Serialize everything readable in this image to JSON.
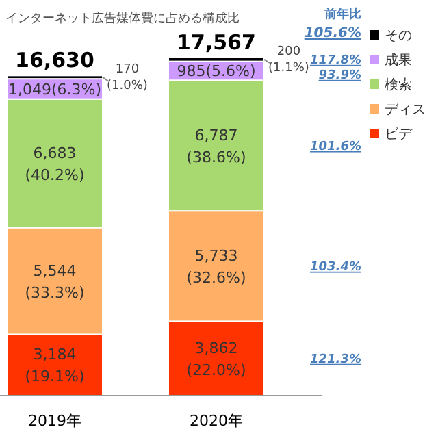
{
  "chart_data": {
    "type": "bar",
    "stacked": true,
    "title": "インターネット広告媒体費に占める構成比",
    "categories": [
      "2019年",
      "2020年"
    ],
    "series": [
      {
        "name": "ビデ",
        "color": "#ff3300",
        "values": [
          3184,
          3862
        ],
        "value_labels": [
          "3,184\n(19.1%)",
          "3,862\n(22.0%)"
        ]
      },
      {
        "name": "ディス",
        "color": "#ffb066",
        "values": [
          5544,
          5733
        ],
        "value_labels": [
          "5,544\n(33.3%)",
          "5,733\n(32.6%)"
        ]
      },
      {
        "name": "検索",
        "color": "#a8d870",
        "values": [
          6683,
          6787
        ],
        "value_labels": [
          "6,683\n(40.2%)",
          "6,787\n(38.6%)"
        ]
      },
      {
        "name": "成果",
        "color": "#cc99ff",
        "values": [
          1049,
          985
        ],
        "value_labels": [
          "1,049(6.3%)",
          "985(5.6%)"
        ]
      },
      {
        "name": "その",
        "color": "#000000",
        "values": [
          170,
          200
        ],
        "value_labels": [
          "170\n(1.0%)",
          "200\n(1.1%)"
        ]
      }
    ],
    "totals": [
      "16,630",
      "17,567"
    ],
    "legend": "right",
    "annotations": [
      "前年比",
      "105.6%",
      "117.8%",
      "93.9%",
      "101.6%",
      "103.4%",
      "121.3%"
    ]
  }
}
